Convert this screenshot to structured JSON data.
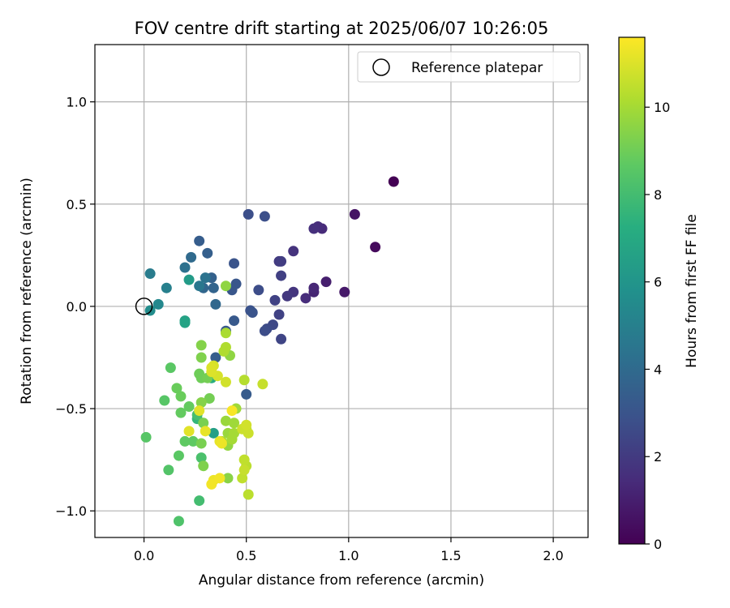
{
  "chart_data": {
    "type": "scatter",
    "title": "FOV centre drift starting at 2025/06/07 10:26:05",
    "xlabel": "Angular distance from reference (arcmin)",
    "ylabel": "Rotation from reference (arcmin)",
    "xlim": [
      -0.24,
      2.17
    ],
    "ylim": [
      -1.13,
      1.28
    ],
    "xticks": [
      0.0,
      0.5,
      1.0,
      1.5,
      2.0
    ],
    "xtick_labels": [
      "0.0",
      "0.5",
      "1.0",
      "1.5",
      "2.0"
    ],
    "yticks": [
      -1.0,
      -0.5,
      0.0,
      0.5,
      1.0
    ],
    "ytick_labels": [
      "−1.0",
      "−0.5",
      "0.0",
      "0.5",
      "1.0"
    ],
    "grid": true,
    "colormap": "viridis",
    "colorbar": {
      "label": "Hours from first FF file",
      "range": [
        0,
        11.6
      ],
      "ticks": [
        0,
        2,
        4,
        6,
        8,
        10
      ],
      "tick_labels": [
        "0",
        "2",
        "4",
        "6",
        "8",
        "10"
      ]
    },
    "legend": {
      "location": "upper right",
      "entries": [
        {
          "label": "Reference platepar",
          "marker": "open-circle"
        }
      ]
    },
    "reference_point": {
      "x": 0.0,
      "y": 0.0
    },
    "points": [
      {
        "x": 1.22,
        "y": 0.61,
        "c": 0.0
      },
      {
        "x": 1.13,
        "y": 0.29,
        "c": 0.3
      },
      {
        "x": 1.03,
        "y": 0.45,
        "c": 0.6
      },
      {
        "x": 0.98,
        "y": 0.07,
        "c": 0.8
      },
      {
        "x": 0.89,
        "y": 0.12,
        "c": 1.0
      },
      {
        "x": 0.83,
        "y": 0.07,
        "c": 1.2
      },
      {
        "x": 0.83,
        "y": 0.09,
        "c": 1.3
      },
      {
        "x": 0.79,
        "y": 0.04,
        "c": 1.5
      },
      {
        "x": 0.87,
        "y": 0.38,
        "c": 1.4
      },
      {
        "x": 0.85,
        "y": 0.39,
        "c": 1.5
      },
      {
        "x": 0.83,
        "y": 0.38,
        "c": 1.6
      },
      {
        "x": 0.73,
        "y": 0.27,
        "c": 1.7
      },
      {
        "x": 0.73,
        "y": 0.07,
        "c": 1.8
      },
      {
        "x": 0.7,
        "y": 0.05,
        "c": 1.9
      },
      {
        "x": 0.66,
        "y": 0.22,
        "c": 2.0
      },
      {
        "x": 0.67,
        "y": 0.22,
        "c": 2.1
      },
      {
        "x": 0.67,
        "y": 0.15,
        "c": 2.2
      },
      {
        "x": 0.64,
        "y": 0.03,
        "c": 2.3
      },
      {
        "x": 0.66,
        "y": -0.04,
        "c": 2.3
      },
      {
        "x": 0.67,
        "y": -0.16,
        "c": 2.4
      },
      {
        "x": 0.63,
        "y": -0.09,
        "c": 2.5
      },
      {
        "x": 0.6,
        "y": -0.11,
        "c": 2.6
      },
      {
        "x": 0.59,
        "y": -0.12,
        "c": 2.7
      },
      {
        "x": 0.56,
        "y": 0.08,
        "c": 2.7
      },
      {
        "x": 0.51,
        "y": 0.45,
        "c": 2.8
      },
      {
        "x": 0.59,
        "y": 0.44,
        "c": 2.8
      },
      {
        "x": 0.52,
        "y": -0.02,
        "c": 2.9
      },
      {
        "x": 0.53,
        "y": -0.03,
        "c": 3.0
      },
      {
        "x": 0.44,
        "y": 0.21,
        "c": 3.0
      },
      {
        "x": 0.45,
        "y": 0.11,
        "c": 3.1
      },
      {
        "x": 0.43,
        "y": 0.08,
        "c": 3.1
      },
      {
        "x": 0.44,
        "y": -0.07,
        "c": 3.2
      },
      {
        "x": 0.4,
        "y": -0.12,
        "c": 3.2
      },
      {
        "x": 0.5,
        "y": -0.43,
        "c": 3.3
      },
      {
        "x": 0.35,
        "y": -0.25,
        "c": 3.4
      },
      {
        "x": 0.27,
        "y": 0.32,
        "c": 3.4
      },
      {
        "x": 0.31,
        "y": 0.26,
        "c": 3.5
      },
      {
        "x": 0.33,
        "y": 0.14,
        "c": 3.6
      },
      {
        "x": 0.34,
        "y": 0.09,
        "c": 3.7
      },
      {
        "x": 0.29,
        "y": 0.09,
        "c": 3.8
      },
      {
        "x": 0.35,
        "y": 0.01,
        "c": 3.9
      },
      {
        "x": 0.23,
        "y": 0.24,
        "c": 4.0
      },
      {
        "x": 0.2,
        "y": 0.19,
        "c": 4.3
      },
      {
        "x": 0.3,
        "y": 0.14,
        "c": 4.4
      },
      {
        "x": 0.27,
        "y": 0.1,
        "c": 4.6
      },
      {
        "x": 0.03,
        "y": 0.16,
        "c": 4.8
      },
      {
        "x": 0.11,
        "y": 0.09,
        "c": 5.0
      },
      {
        "x": 0.07,
        "y": 0.01,
        "c": 5.4
      },
      {
        "x": 0.03,
        "y": -0.02,
        "c": 5.6
      },
      {
        "x": 0.22,
        "y": 0.13,
        "c": 6.3
      },
      {
        "x": 0.2,
        "y": -0.07,
        "c": 6.6
      },
      {
        "x": 0.2,
        "y": -0.08,
        "c": 6.7
      },
      {
        "x": 0.34,
        "y": -0.62,
        "c": 6.5
      },
      {
        "x": 0.33,
        "y": -0.35,
        "c": 7.2
      },
      {
        "x": 0.26,
        "y": -0.55,
        "c": 7.6
      },
      {
        "x": 0.27,
        "y": -0.95,
        "c": 8.0
      },
      {
        "x": 0.26,
        "y": -0.53,
        "c": 8.1
      },
      {
        "x": 0.28,
        "y": -0.74,
        "c": 8.2
      },
      {
        "x": 0.17,
        "y": -1.05,
        "c": 8.3
      },
      {
        "x": 0.12,
        "y": -0.8,
        "c": 8.4
      },
      {
        "x": 0.01,
        "y": -0.64,
        "c": 8.5
      },
      {
        "x": 0.1,
        "y": -0.46,
        "c": 8.5
      },
      {
        "x": 0.13,
        "y": -0.3,
        "c": 8.6
      },
      {
        "x": 0.17,
        "y": -0.73,
        "c": 8.6
      },
      {
        "x": 0.2,
        "y": -0.66,
        "c": 8.7
      },
      {
        "x": 0.24,
        "y": -0.66,
        "c": 8.7
      },
      {
        "x": 0.18,
        "y": -0.52,
        "c": 8.8
      },
      {
        "x": 0.22,
        "y": -0.49,
        "c": 8.8
      },
      {
        "x": 0.18,
        "y": -0.44,
        "c": 8.9
      },
      {
        "x": 0.16,
        "y": -0.4,
        "c": 8.9
      },
      {
        "x": 0.28,
        "y": -0.35,
        "c": 9.0
      },
      {
        "x": 0.27,
        "y": -0.33,
        "c": 9.0
      },
      {
        "x": 0.31,
        "y": -0.35,
        "c": 9.1
      },
      {
        "x": 0.32,
        "y": -0.45,
        "c": 9.1
      },
      {
        "x": 0.28,
        "y": -0.67,
        "c": 9.2
      },
      {
        "x": 0.29,
        "y": -0.57,
        "c": 9.2
      },
      {
        "x": 0.29,
        "y": -0.78,
        "c": 9.3
      },
      {
        "x": 0.28,
        "y": -0.25,
        "c": 9.3
      },
      {
        "x": 0.28,
        "y": -0.19,
        "c": 9.4
      },
      {
        "x": 0.28,
        "y": -0.47,
        "c": 9.4
      },
      {
        "x": 0.41,
        "y": -0.84,
        "c": 9.5
      },
      {
        "x": 0.4,
        "y": 0.1,
        "c": 9.6
      },
      {
        "x": 0.42,
        "y": -0.24,
        "c": 9.6
      },
      {
        "x": 0.41,
        "y": -0.68,
        "c": 9.7
      },
      {
        "x": 0.41,
        "y": -0.62,
        "c": 9.8
      },
      {
        "x": 0.4,
        "y": -0.56,
        "c": 9.8
      },
      {
        "x": 0.44,
        "y": -0.57,
        "c": 9.9
      },
      {
        "x": 0.45,
        "y": -0.5,
        "c": 9.9
      },
      {
        "x": 0.43,
        "y": -0.65,
        "c": 10.0
      },
      {
        "x": 0.44,
        "y": -0.62,
        "c": 10.0
      },
      {
        "x": 0.38,
        "y": -0.66,
        "c": 10.1
      },
      {
        "x": 0.4,
        "y": -0.13,
        "c": 10.1
      },
      {
        "x": 0.4,
        "y": -0.2,
        "c": 10.2
      },
      {
        "x": 0.39,
        "y": -0.22,
        "c": 10.2
      },
      {
        "x": 0.49,
        "y": -0.36,
        "c": 10.3
      },
      {
        "x": 0.5,
        "y": -0.6,
        "c": 10.3
      },
      {
        "x": 0.51,
        "y": -0.92,
        "c": 10.4
      },
      {
        "x": 0.5,
        "y": -0.78,
        "c": 10.4
      },
      {
        "x": 0.49,
        "y": -0.75,
        "c": 10.5
      },
      {
        "x": 0.48,
        "y": -0.84,
        "c": 10.5
      },
      {
        "x": 0.49,
        "y": -0.8,
        "c": 10.6
      },
      {
        "x": 0.58,
        "y": -0.38,
        "c": 10.6
      },
      {
        "x": 0.51,
        "y": -0.62,
        "c": 10.7
      },
      {
        "x": 0.48,
        "y": -0.6,
        "c": 10.7
      },
      {
        "x": 0.5,
        "y": -0.58,
        "c": 10.8
      },
      {
        "x": 0.4,
        "y": -0.37,
        "c": 10.8
      },
      {
        "x": 0.36,
        "y": -0.34,
        "c": 10.9
      },
      {
        "x": 0.34,
        "y": -0.29,
        "c": 10.9
      },
      {
        "x": 0.33,
        "y": -0.32,
        "c": 11.0
      },
      {
        "x": 0.33,
        "y": -0.3,
        "c": 11.0
      },
      {
        "x": 0.22,
        "y": -0.61,
        "c": 11.1
      },
      {
        "x": 0.27,
        "y": -0.51,
        "c": 11.1
      },
      {
        "x": 0.3,
        "y": -0.61,
        "c": 11.2
      },
      {
        "x": 0.37,
        "y": -0.66,
        "c": 11.2
      },
      {
        "x": 0.38,
        "y": -0.67,
        "c": 11.3
      },
      {
        "x": 0.34,
        "y": -0.85,
        "c": 11.3
      },
      {
        "x": 0.33,
        "y": -0.87,
        "c": 11.4
      },
      {
        "x": 0.37,
        "y": -0.84,
        "c": 11.4
      },
      {
        "x": 0.43,
        "y": -0.51,
        "c": 11.5
      }
    ]
  }
}
